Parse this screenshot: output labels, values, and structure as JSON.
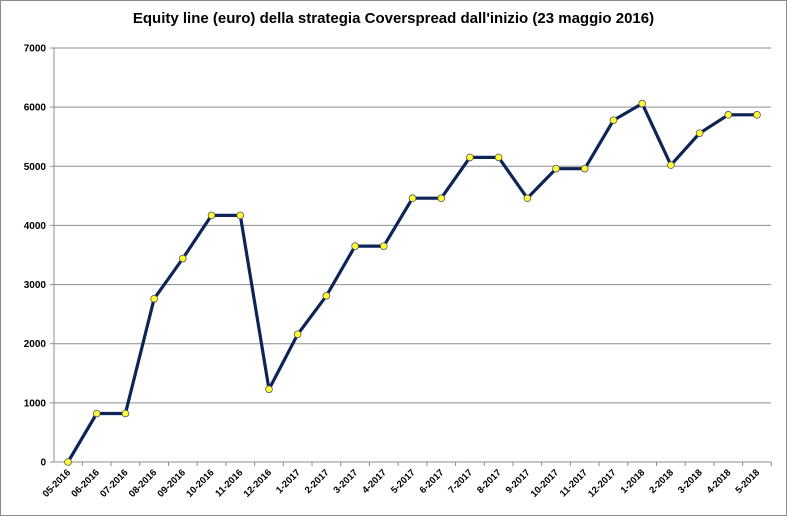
{
  "chart_data": {
    "type": "line",
    "title": "Equity line (euro) della strategia Coverspread dall'inizio (23 maggio 2016)",
    "xlabel": "",
    "ylabel": "",
    "ylim": [
      0,
      7000
    ],
    "yticks": [
      0,
      1000,
      2000,
      3000,
      4000,
      5000,
      6000,
      7000
    ],
    "grid": true,
    "legend": "none",
    "categories": [
      "05-2016",
      "06-2016",
      "07-2016",
      "08-2016",
      "09-2016",
      "10-2016",
      "11-2016",
      "12-2016",
      "1-2017",
      "2-2017",
      "3-2017",
      "4-2017",
      "5-2017",
      "6-2017",
      "7-2017",
      "8-2017",
      "9-2017",
      "10-2017",
      "11-2017",
      "12-2017",
      "1-2018",
      "2-2018",
      "3-2018",
      "4-2018",
      "5-2018"
    ],
    "series": [
      {
        "values": [
          0,
          820,
          820,
          2760,
          3440,
          4170,
          4170,
          1230,
          2160,
          2810,
          3650,
          3650,
          4460,
          4460,
          5150,
          5150,
          4460,
          4960,
          4960,
          5780,
          6060,
          5020,
          5560,
          5870,
          5870
        ],
        "line_color": "#0d2456",
        "marker_color": "#ffff33"
      }
    ]
  }
}
